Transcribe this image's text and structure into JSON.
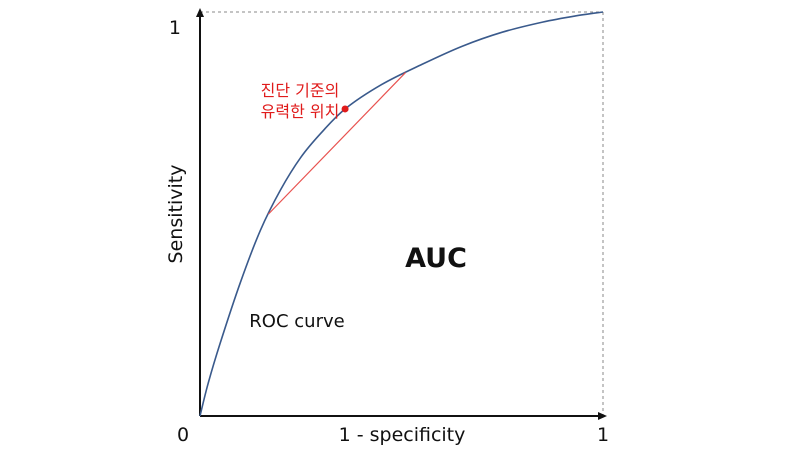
{
  "chart_data": {
    "type": "line",
    "xlabel": "1 - specificity",
    "ylabel": "Sensitivity",
    "xlim": [
      0,
      1
    ],
    "ylim": [
      0,
      1
    ],
    "x_ticks": [
      "0",
      "1"
    ],
    "y_ticks": [
      "1"
    ],
    "series": [
      {
        "name": "ROC curve",
        "color": "#3a5a8c",
        "x": [
          0.0,
          0.02,
          0.05,
          0.1,
          0.15,
          0.2,
          0.25,
          0.3,
          0.36,
          0.45,
          0.55,
          0.65,
          0.75,
          0.85,
          0.93,
          1.0
        ],
        "y": [
          0.0,
          0.08,
          0.18,
          0.33,
          0.46,
          0.56,
          0.64,
          0.7,
          0.76,
          0.82,
          0.87,
          0.915,
          0.95,
          0.975,
          0.99,
          1.0
        ]
      }
    ],
    "reference_lines": {
      "top_dashed_y": 1,
      "right_dashed_x": 1
    },
    "optimal_point": {
      "x": 0.36,
      "y": 0.76,
      "color": "#e01b1b"
    },
    "tangent": {
      "x": [
        0.17,
        0.51
      ],
      "y": [
        0.5,
        0.85
      ],
      "color": "#e8524f"
    },
    "annotations": {
      "optimal_line1": "진단 기준의",
      "optimal_line2": "유력한 위치",
      "curve_label": "ROC curve",
      "area_label": "AUC",
      "annotation_color": "#e01b1b"
    }
  }
}
